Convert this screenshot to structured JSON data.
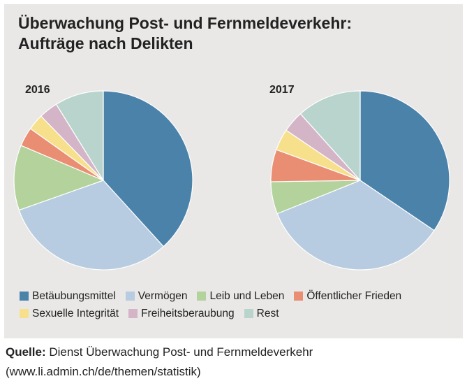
{
  "title_line1": "Überwachung Post- und Fernmeldeverkehr:",
  "title_line2": "Aufträge nach Delikten",
  "source": {
    "label": "Quelle:",
    "text": " Dienst Überwachung Post- und Fernmeldeverkehr",
    "url": "(www.li.admin.ch/de/themen/statistik)"
  },
  "colors": {
    "Betäubungsmittel": "#4a82aa",
    "Vermögen": "#b7cce0",
    "Leib und Leben": "#b3d29c",
    "Öffentlicher Frieden": "#e98e72",
    "Sexuelle Integrität": "#f7e08c",
    "Freiheitsberaubung": "#d4b4c7",
    "Rest": "#b9d4cc"
  },
  "legend": {
    "rows": [
      [
        "Betäubungsmittel",
        "Vermögen",
        "Leib und Leben",
        "Öffentlicher Frieden"
      ],
      [
        "Sexuelle Integrität",
        "Freiheitsberaubung",
        "Rest"
      ]
    ]
  },
  "chart_data": [
    {
      "type": "pie",
      "label": "2016",
      "categories": [
        "Betäubungsmittel",
        "Vermögen",
        "Leib und Leben",
        "Öffentlicher Frieden",
        "Sexuelle Integrität",
        "Freiheitsberaubung",
        "Rest"
      ],
      "values": [
        39,
        32,
        12,
        3.5,
        3,
        3.5,
        9
      ],
      "start": "12 o'clock",
      "direction": "clockwise"
    },
    {
      "type": "pie",
      "label": "2017",
      "categories": [
        "Betäubungsmittel",
        "Vermögen",
        "Leib und Leben",
        "Öffentlicher Frieden",
        "Sexuelle Integrität",
        "Freiheitsberaubung",
        "Rest"
      ],
      "values": [
        35.5,
        35.5,
        6,
        6,
        4,
        4,
        12
      ],
      "start": "12 o'clock",
      "direction": "clockwise"
    }
  ]
}
